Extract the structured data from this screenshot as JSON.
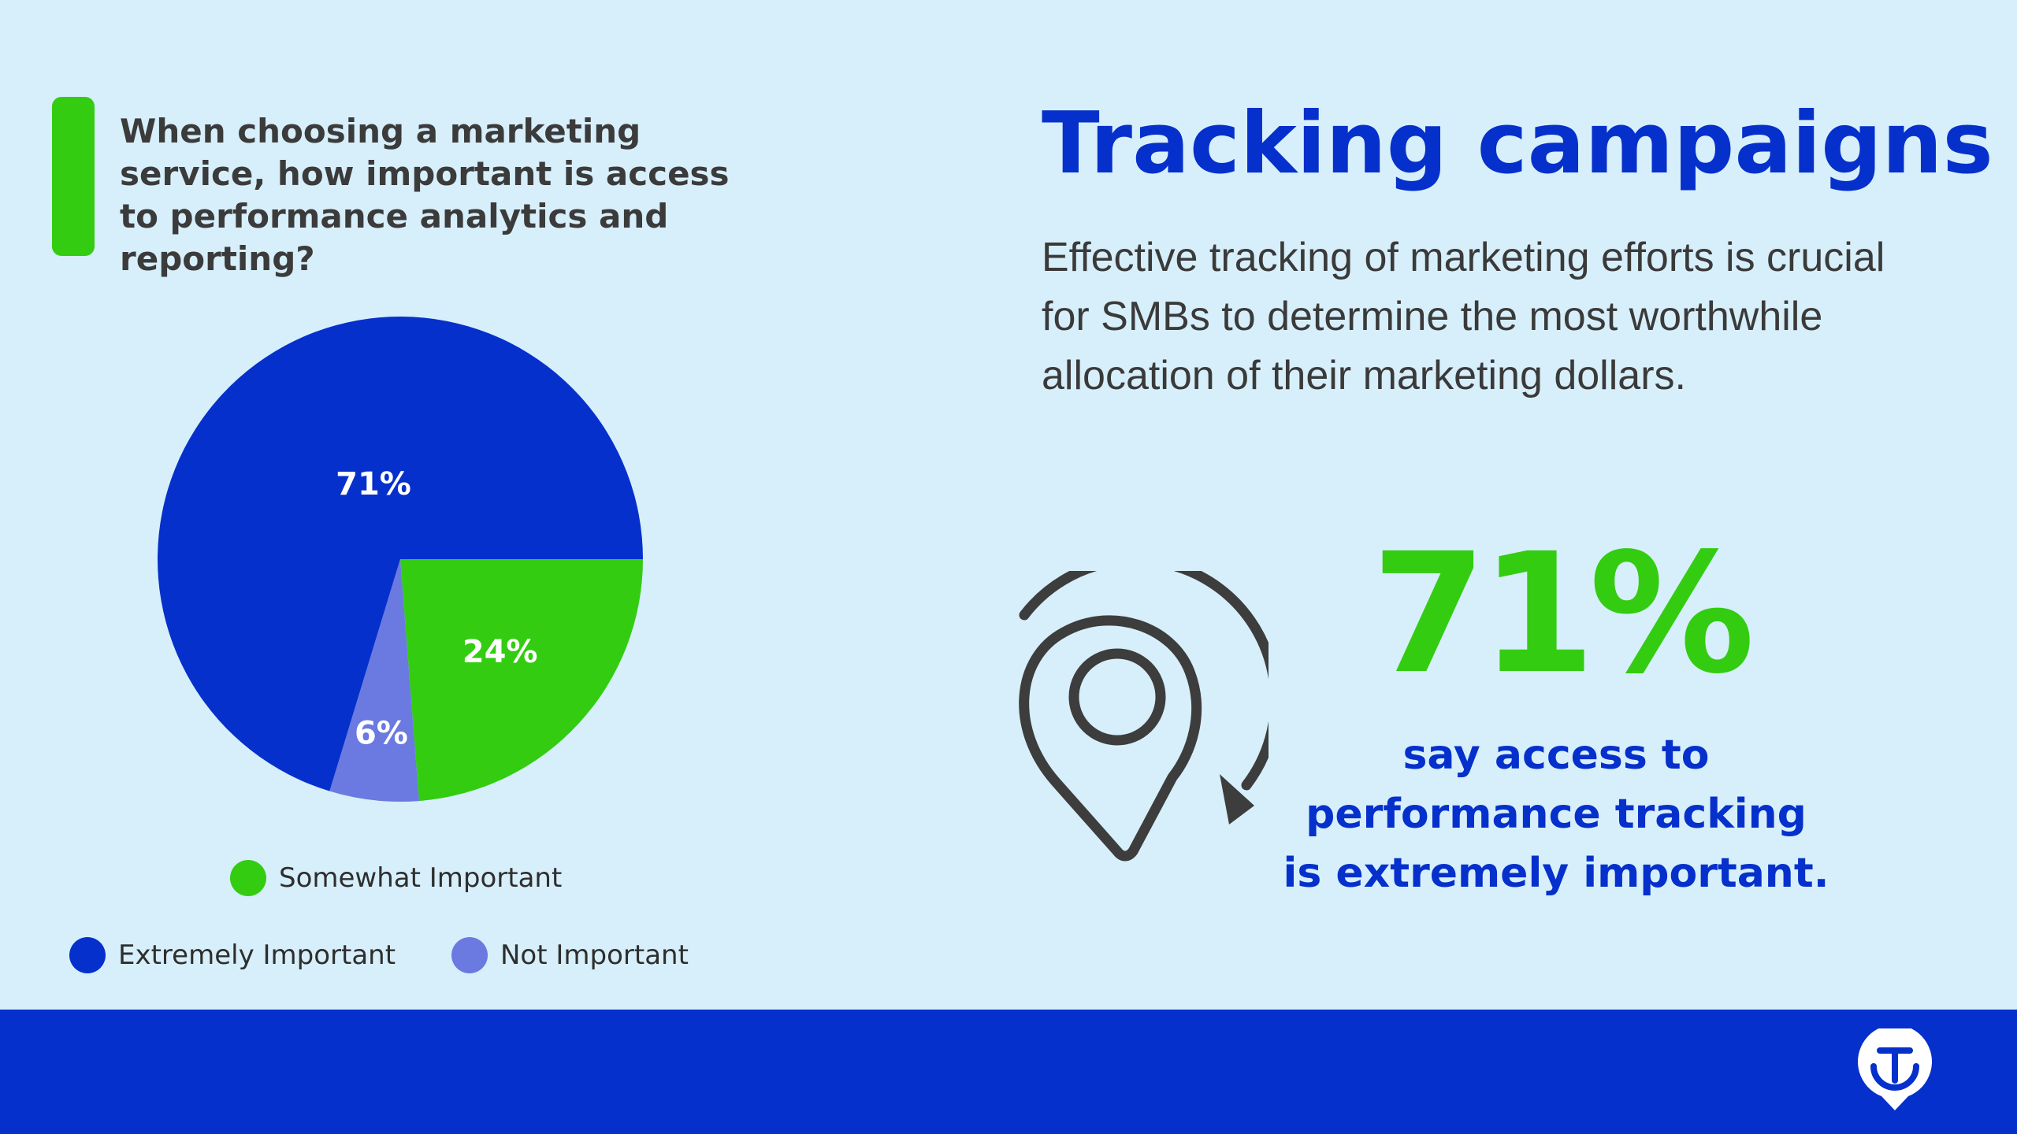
{
  "question": {
    "line1": "When choosing a marketing",
    "line2": "service, how important is access",
    "line3": "to performance analytics and reporting?"
  },
  "heading": "Tracking campaigns",
  "body": "Effective tracking of marketing efforts is crucial for SMBs to determine the most worthwhile allocation of their marketing dollars.",
  "stat": {
    "value": "71%",
    "line1": "say access to",
    "line2": "performance tracking",
    "line3": "is extremely important."
  },
  "chart_data": {
    "type": "pie",
    "title": "",
    "slices": [
      {
        "name": "Extremely Important",
        "value": 71,
        "label": "71%",
        "color": "#0630cc"
      },
      {
        "name": "Somewhat Important",
        "value": 24,
        "label": "24%",
        "color": "#33cc11"
      },
      {
        "name": "Not Important",
        "value": 6,
        "label": "6%",
        "color": "#6a7ae0"
      }
    ],
    "legend": [
      {
        "label": "Somewhat Important",
        "color": "#33cc11"
      },
      {
        "label": "Extremely Important",
        "color": "#0630cc"
      },
      {
        "label": "Not Important",
        "color": "#6a7ae0"
      }
    ],
    "legend_placement": "bottom"
  },
  "icons": {
    "pin": "location-pin-refresh-icon",
    "logo": "brand-logo-icon"
  },
  "colors": {
    "background": "#d7effa",
    "primary_blue": "#0630cc",
    "accent_green": "#33cc11",
    "light_purple": "#6a7ae0",
    "dark_text": "#3b3b3b"
  }
}
